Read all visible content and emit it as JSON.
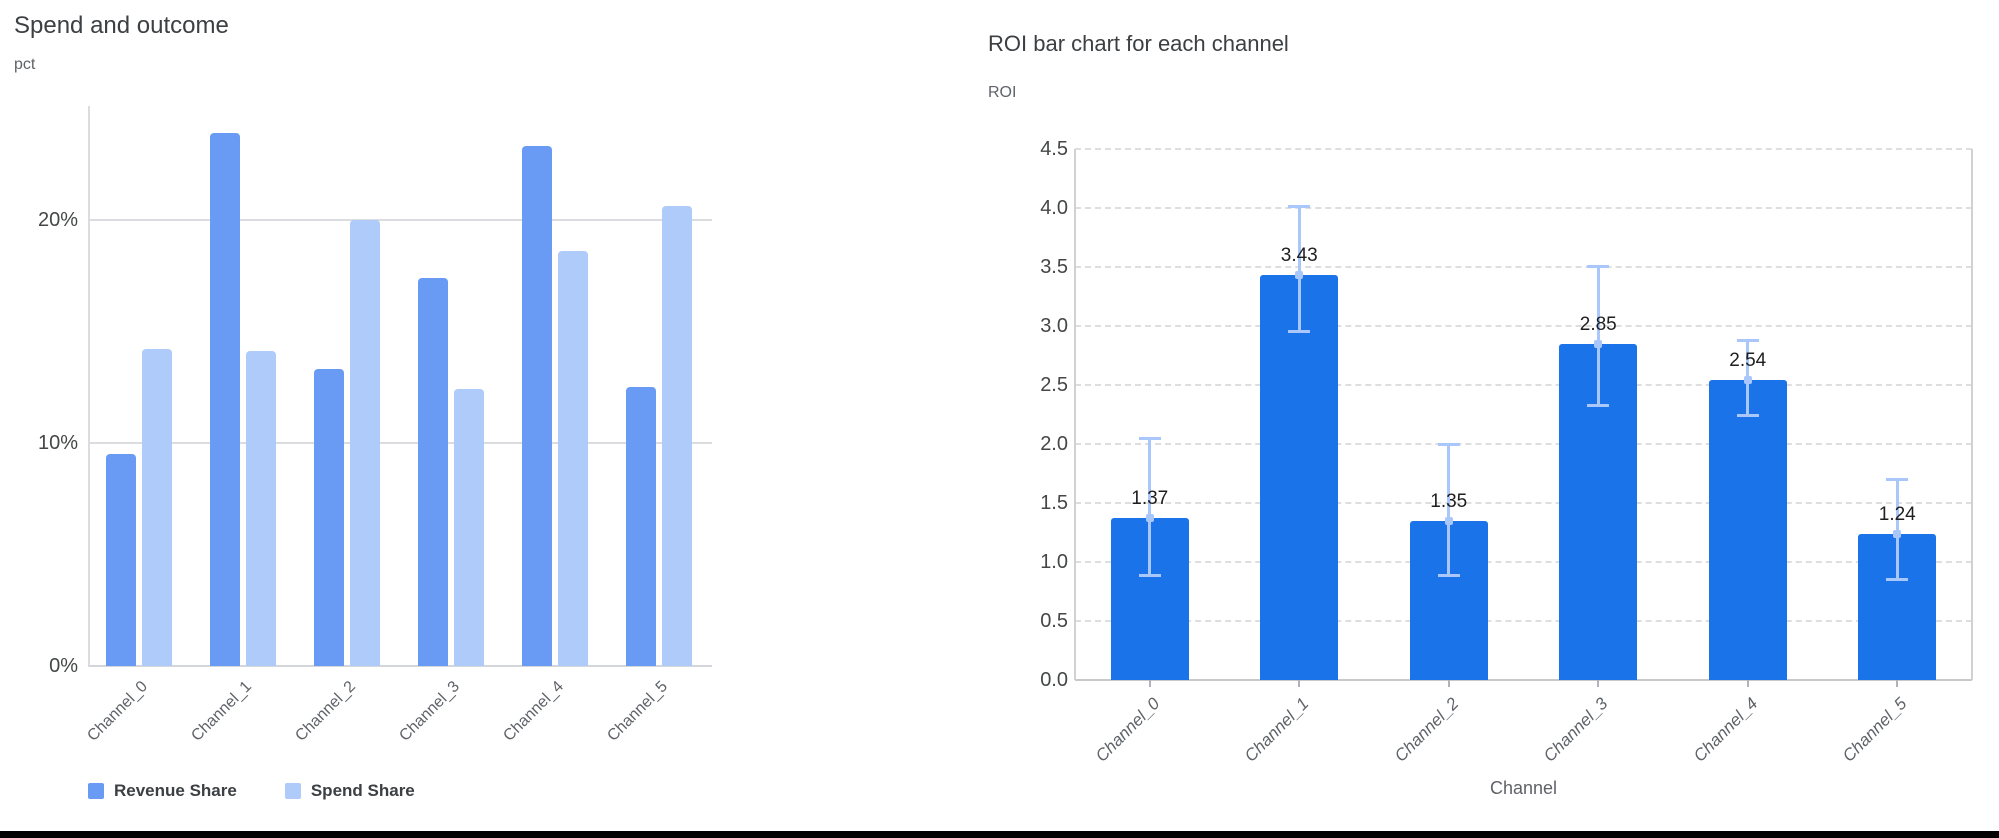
{
  "chart_data": [
    {
      "type": "bar",
      "title": "Spend and outcome",
      "ylabel": "pct",
      "categories": [
        "Channel_0",
        "Channel_1",
        "Channel_2",
        "Channel_3",
        "Channel_4",
        "Channel_5"
      ],
      "series": [
        {
          "name": "Revenue Share",
          "color": "#699bf5",
          "values": [
            9.5,
            23.9,
            13.3,
            17.4,
            23.3,
            12.5
          ]
        },
        {
          "name": "Spend Share",
          "color": "#aecbfa",
          "values": [
            14.2,
            14.1,
            20.0,
            12.4,
            18.6,
            20.6
          ]
        }
      ],
      "value_unit": "%",
      "ylim": [
        0,
        25.1
      ],
      "yticks": [
        {
          "value": 0,
          "label": "0%"
        },
        {
          "value": 10,
          "label": "10%"
        },
        {
          "value": 20,
          "label": "20%"
        }
      ],
      "grid": true,
      "legend_position": "bottom"
    },
    {
      "type": "bar",
      "title": "ROI bar chart for each channel",
      "xlabel": "Channel",
      "ylabel": "ROI",
      "categories": [
        "Channel_0",
        "Channel_1",
        "Channel_2",
        "Channel_3",
        "Channel_4",
        "Channel_5"
      ],
      "values": [
        1.37,
        3.43,
        1.35,
        2.85,
        2.54,
        1.24
      ],
      "data_labels": [
        "1.37",
        "3.43",
        "1.35",
        "2.85",
        "2.54",
        "1.24"
      ],
      "error_low": [
        0.88,
        2.95,
        0.88,
        2.32,
        2.24,
        0.85
      ],
      "error_high": [
        2.05,
        4.02,
        2.0,
        3.51,
        2.88,
        1.7
      ],
      "bar_color": "#1a73e8",
      "error_color": "#a9c7fb",
      "ylim": [
        0,
        4.5
      ],
      "yticks": [
        "0.0",
        "0.5",
        "1.0",
        "1.5",
        "2.0",
        "2.5",
        "3.0",
        "3.5",
        "4.0",
        "4.5"
      ],
      "grid": true,
      "grid_style": "dashed"
    }
  ]
}
